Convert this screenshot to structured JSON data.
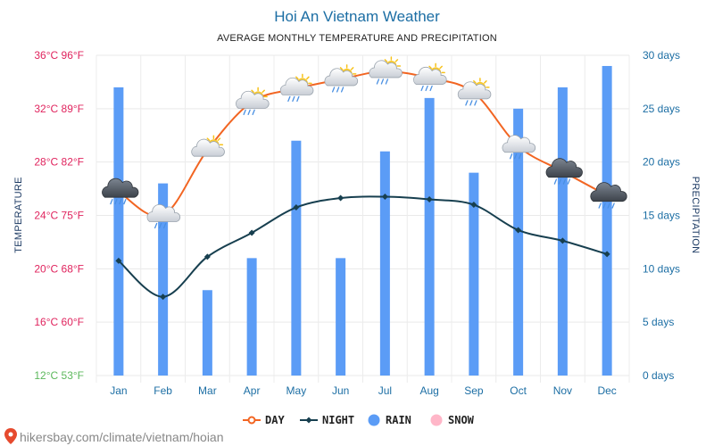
{
  "chart_data": {
    "type": "bar+line",
    "title": "Hoi An Vietnam Weather",
    "subtitle": "AVERAGE MONTHLY TEMPERATURE AND PRECIPITATION",
    "categories": [
      "Jan",
      "Feb",
      "Mar",
      "Apr",
      "May",
      "Jun",
      "Jul",
      "Aug",
      "Sep",
      "Oct",
      "Nov",
      "Dec"
    ],
    "y_left": {
      "label": "TEMPERATURE",
      "range": [
        12,
        36
      ],
      "ticks": [
        "12°C 53°F",
        "16°C 60°F",
        "20°C 68°F",
        "24°C 75°F",
        "28°C 82°F",
        "32°C 89°F",
        "36°C 96°F"
      ]
    },
    "y_right": {
      "label": "PRECIPITATION",
      "range": [
        0,
        30
      ],
      "ticks": [
        "0 days",
        "5 days",
        "10 days",
        "15 days",
        "20 days",
        "25 days",
        "30 days"
      ]
    },
    "series": [
      {
        "name": "DAY",
        "type": "line",
        "axis": "left",
        "color": "#f26522",
        "values": [
          25.8,
          24.0,
          28.9,
          32.5,
          33.5,
          34.2,
          34.8,
          34.3,
          33.2,
          29.2,
          27.3,
          25.5
        ]
      },
      {
        "name": "NIGHT",
        "type": "line",
        "axis": "left",
        "color": "#173f4f",
        "values": [
          20.6,
          17.9,
          20.9,
          22.7,
          24.6,
          25.3,
          25.4,
          25.2,
          24.8,
          22.9,
          22.1,
          21.1
        ]
      },
      {
        "name": "RAIN",
        "type": "bar",
        "axis": "right",
        "color": "#5b9cf6",
        "values": [
          27,
          18,
          8,
          11,
          22,
          11,
          21,
          26,
          19,
          25,
          27,
          29
        ]
      },
      {
        "name": "SNOW",
        "type": "bar",
        "axis": "right",
        "color": "#ffb6c8",
        "values": [
          0,
          0,
          0,
          0,
          0,
          0,
          0,
          0,
          0,
          0,
          0,
          0
        ]
      }
    ],
    "weather_icons": [
      "rain-cloud",
      "cloud-rain",
      "sun-cloud",
      "sun-cloud-rain",
      "sun-cloud-rain",
      "sun-cloud-rain",
      "sun-cloud-rain",
      "sun-cloud-rain",
      "sun-cloud-rain",
      "cloud-rain",
      "rain-cloud",
      "rain-cloud"
    ],
    "grid": true,
    "legend_position": "bottom-center"
  },
  "source": "hikersbay.com/climate/vietnam/hoian"
}
